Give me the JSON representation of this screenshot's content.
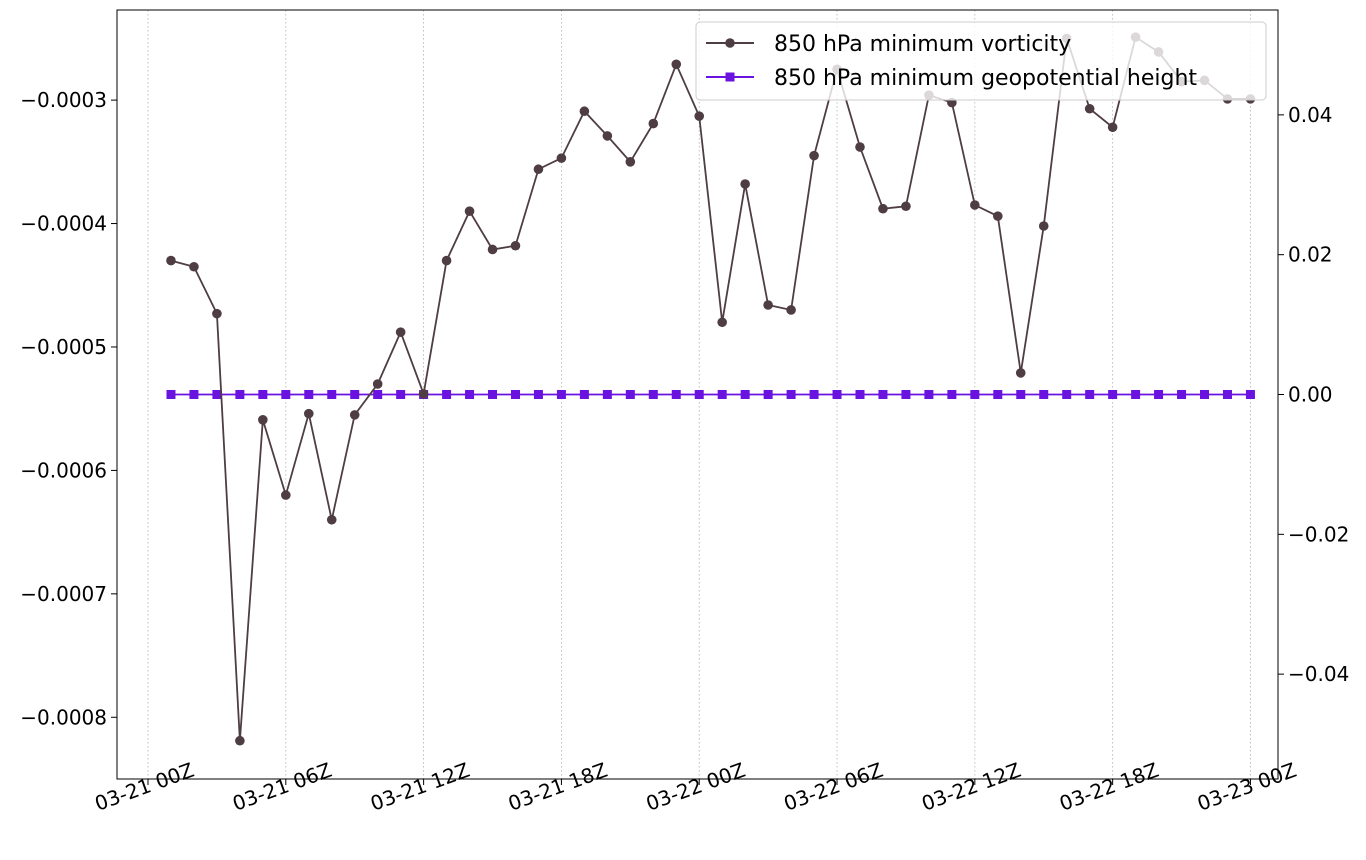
{
  "chart_data": {
    "type": "line",
    "x_unit": "hours",
    "x": [
      1,
      2,
      3,
      4,
      5,
      6,
      7,
      8,
      9,
      10,
      11,
      12,
      13,
      14,
      15,
      16,
      17,
      18,
      19,
      20,
      21,
      22,
      23,
      24,
      25,
      26,
      27,
      28,
      29,
      30,
      31,
      32,
      33,
      34,
      35,
      36,
      37,
      38,
      39,
      40,
      41,
      42,
      43,
      44,
      45,
      46,
      47,
      48
    ],
    "x_ticks": [
      {
        "value": 0,
        "label": "03-21 00Z"
      },
      {
        "value": 6,
        "label": "03-21 06Z"
      },
      {
        "value": 12,
        "label": "03-21 12Z"
      },
      {
        "value": 18,
        "label": "03-21 18Z"
      },
      {
        "value": 24,
        "label": "03-22 00Z"
      },
      {
        "value": 30,
        "label": "03-22 06Z"
      },
      {
        "value": 36,
        "label": "03-22 12Z"
      },
      {
        "value": 42,
        "label": "03-22 18Z"
      },
      {
        "value": 48,
        "label": "03-23 00Z"
      }
    ],
    "xlim": [
      -1.35,
      49.2
    ],
    "y_left": {
      "lim": [
        -0.00085,
        -0.000227
      ],
      "ticks": [
        {
          "value": -0.0003,
          "label": "−0.0003"
        },
        {
          "value": -0.0004,
          "label": "−0.0004"
        },
        {
          "value": -0.0005,
          "label": "−0.0005"
        },
        {
          "value": -0.0006,
          "label": "−0.0006"
        },
        {
          "value": -0.0007,
          "label": "−0.0007"
        },
        {
          "value": -0.0008,
          "label": "−0.0008"
        }
      ]
    },
    "y_right": {
      "lim": [
        -0.055,
        0.055
      ],
      "ticks": [
        {
          "value": 0.04,
          "label": "0.04"
        },
        {
          "value": 0.02,
          "label": "0.02"
        },
        {
          "value": 0.0,
          "label": "0.00"
        },
        {
          "value": -0.02,
          "label": "−0.02"
        },
        {
          "value": -0.04,
          "label": "−0.04"
        }
      ]
    },
    "grid": "x-only-dotted",
    "legend_position": "top-right",
    "series": [
      {
        "name": "850 hPa minimum vorticity",
        "axis": "left",
        "color": "#4f3d44",
        "marker": "circle",
        "values": [
          -0.00043,
          -0.000435,
          -0.000473,
          -0.000819,
          -0.000559,
          -0.00062,
          -0.000554,
          -0.00064,
          -0.000555,
          -0.00053,
          -0.000488,
          -0.000538,
          -0.00043,
          -0.00039,
          -0.000421,
          -0.000418,
          -0.000356,
          -0.000347,
          -0.000309,
          -0.000329,
          -0.00035,
          -0.000319,
          -0.000271,
          -0.000313,
          -0.00048,
          -0.000368,
          -0.000466,
          -0.00047,
          -0.000345,
          -0.000275,
          -0.000338,
          -0.000388,
          -0.000386,
          -0.000296,
          -0.000302,
          -0.000385,
          -0.000394,
          -0.000521,
          -0.000402,
          -0.00025,
          -0.000307,
          -0.000322,
          -0.000249,
          -0.000261,
          -0.000285,
          -0.000284,
          -0.000299,
          -0.000299
        ]
      },
      {
        "name": "850 hPa minimum geopotential height",
        "axis": "right",
        "color": "#6a12e0",
        "marker": "square",
        "values": [
          0,
          0,
          0,
          0,
          0,
          0,
          0,
          0,
          0,
          0,
          0,
          0,
          0,
          0,
          0,
          0,
          0,
          0,
          0,
          0,
          0,
          0,
          0,
          0,
          0,
          0,
          0,
          0,
          0,
          0,
          0,
          0,
          0,
          0,
          0,
          0,
          0,
          0,
          0,
          0,
          0,
          0,
          0,
          0,
          0,
          0,
          0,
          0
        ]
      }
    ]
  }
}
